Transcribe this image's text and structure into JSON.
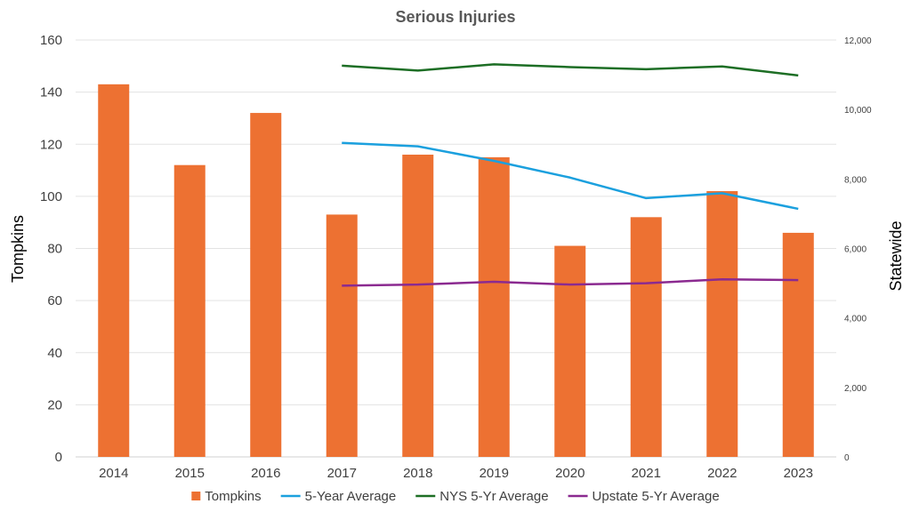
{
  "chart_data": {
    "type": "bar+line",
    "title": "Serious Injuries",
    "ylabel": "Tompkins",
    "y2label": "Statewide",
    "categories": [
      "2014",
      "2015",
      "2016",
      "2017",
      "2018",
      "2019",
      "2020",
      "2021",
      "2022",
      "2023"
    ],
    "ylim": [
      0,
      160
    ],
    "y_ticks": [
      "0",
      "20",
      "40",
      "60",
      "80",
      "100",
      "120",
      "140",
      "160"
    ],
    "y2lim": [
      0,
      12000
    ],
    "y2_ticks": [
      "0",
      "2,000",
      "4,000",
      "6,000",
      "8,000",
      "10,000",
      "12,000"
    ],
    "grid": true,
    "legend_position": "bottom",
    "series": [
      {
        "name": "Tompkins",
        "type": "bar",
        "axis": "left",
        "color": "#ed7132",
        "values": [
          143,
          112,
          132,
          93,
          116,
          115,
          81,
          92,
          102,
          86
        ]
      },
      {
        "name": "5-Year Average",
        "type": "line",
        "axis": "left",
        "color": "#1ba0de",
        "values": [
          null,
          null,
          null,
          120.5,
          119.2,
          113.6,
          107.2,
          99.3,
          101.2,
          95.2
        ]
      },
      {
        "name": "NYS 5-Yr Average",
        "type": "line",
        "axis": "right",
        "color": "#1d6e25",
        "values": [
          null,
          null,
          null,
          11260,
          11120,
          11300,
          11220,
          11160,
          11240,
          10980
        ]
      },
      {
        "name": "Upstate 5-Yr Average",
        "type": "line",
        "axis": "right",
        "color": "#8b2a90",
        "values": [
          null,
          null,
          null,
          4930,
          4960,
          5040,
          4960,
          5000,
          5110,
          5090
        ]
      }
    ]
  }
}
